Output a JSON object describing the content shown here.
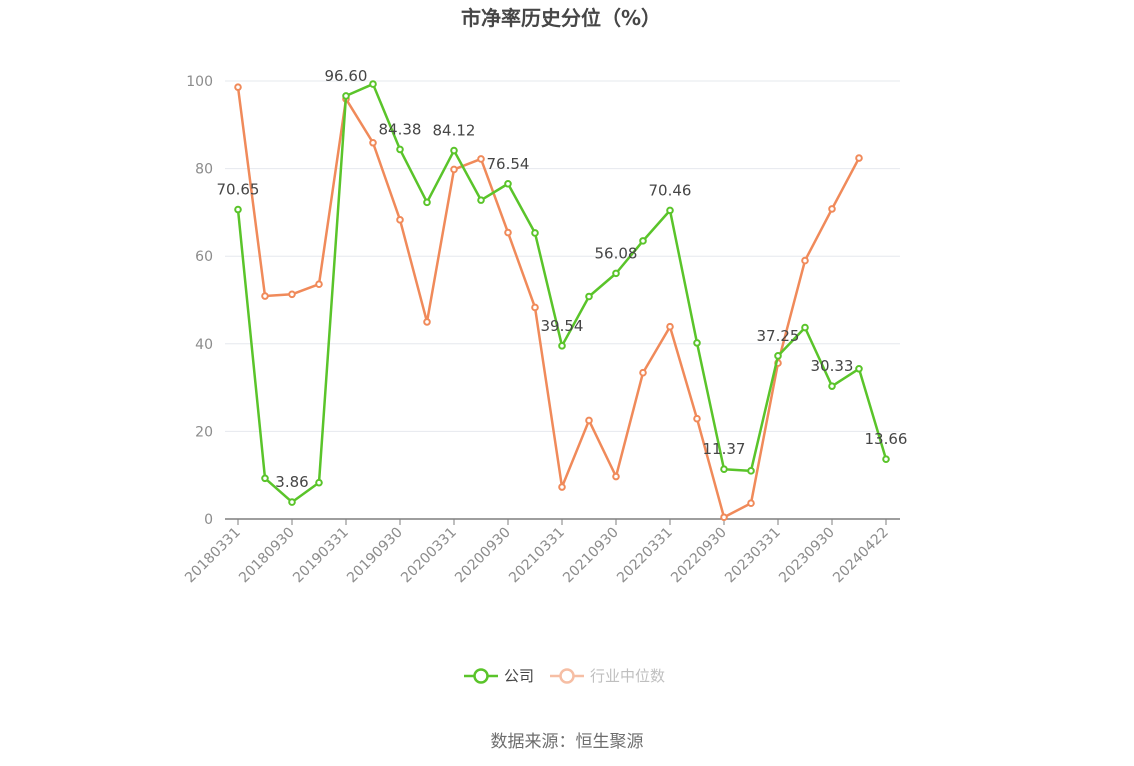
{
  "chart_data": {
    "type": "line",
    "title": "市净率历史分位（%）",
    "source": "数据来源：恒生聚源",
    "ylim": [
      0,
      100
    ],
    "yticks": [
      0,
      20,
      40,
      60,
      80,
      100
    ],
    "grid": true,
    "legend_position": "bottom",
    "x": [
      "20180331",
      "20180630",
      "20180930",
      "20181231",
      "20190331",
      "20190630",
      "20190930",
      "20191231",
      "20200331",
      "20200630",
      "20200930",
      "20201231",
      "20210331",
      "20210630",
      "20210930",
      "20211231",
      "20220331",
      "20220630",
      "20220930",
      "20221231",
      "20230331",
      "20230630",
      "20230930",
      "20231231",
      "20240422"
    ],
    "xtick_labels": [
      "20180331",
      "20180930",
      "20190331",
      "20190930",
      "20200331",
      "20200930",
      "20210331",
      "20210930",
      "20220331",
      "20220930",
      "20230331",
      "20230930",
      "20240422"
    ],
    "series": [
      {
        "name": "公司",
        "color": "#5ac42a",
        "values": [
          70.65,
          9.3,
          3.86,
          8.3,
          96.6,
          99.3,
          84.38,
          72.3,
          84.12,
          72.8,
          76.54,
          65.3,
          39.54,
          50.8,
          56.08,
          63.5,
          70.46,
          40.2,
          11.37,
          11.0,
          37.25,
          43.7,
          30.33,
          34.3,
          13.66
        ],
        "labels": {
          "0": "70.65",
          "2": "3.86",
          "4": "96.60",
          "6": "84.38",
          "8": "84.12",
          "10": "76.54",
          "12": "39.54",
          "14": "56.08",
          "16": "70.46",
          "18": "11.37",
          "20": "37.25",
          "22": "30.33",
          "24": "13.66"
        }
      },
      {
        "name": "行业中位数",
        "color": "#f08a5a",
        "values": [
          98.6,
          50.9,
          51.3,
          53.6,
          95.9,
          85.9,
          68.3,
          45.0,
          79.8,
          82.2,
          65.4,
          48.3,
          7.3,
          22.5,
          9.7,
          33.4,
          43.9,
          22.9,
          0.4,
          3.6,
          35.6,
          59.0,
          70.8,
          82.4,
          null
        ]
      }
    ]
  }
}
